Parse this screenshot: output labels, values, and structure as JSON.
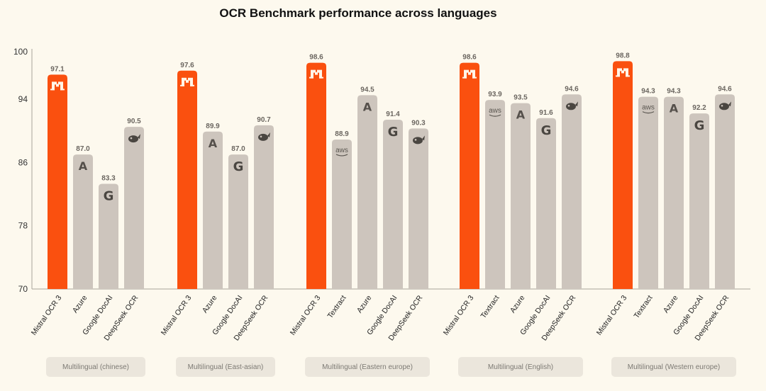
{
  "chart_data": {
    "type": "bar",
    "title": "OCR Benchmark performance across languages",
    "xlabel": "",
    "ylabel": "",
    "ylim": [
      70,
      100
    ],
    "yticks": [
      70,
      78,
      86,
      94,
      100
    ],
    "ytick_labels": [
      "70",
      "78",
      "86",
      "94",
      "100"
    ],
    "grid": false,
    "colors": {
      "highlight": "#fa500f",
      "other": "#cdc5bd",
      "background": "#fdf9ee",
      "group_box": "#ebe6dc"
    },
    "groups": [
      {
        "name": "Multilingual (chinese)",
        "bars": [
          {
            "model": "Mistral OCR 3",
            "value": 97.1,
            "label": "97.1",
            "icon": "mistral-icon",
            "highlight": true
          },
          {
            "model": "Azure",
            "value": 87.0,
            "label": "87.0",
            "icon": "azure-icon"
          },
          {
            "model": "Google DocAI",
            "value": 83.3,
            "label": "83.3",
            "icon": "google-icon"
          },
          {
            "model": "DeepSeek OCR",
            "value": 90.5,
            "label": "90.5",
            "icon": "deepseek-icon"
          }
        ]
      },
      {
        "name": "Multilingual (East-asian)",
        "bars": [
          {
            "model": "Mistral OCR 3",
            "value": 97.6,
            "label": "97.6",
            "icon": "mistral-icon",
            "highlight": true
          },
          {
            "model": "Azure",
            "value": 89.9,
            "label": "89.9",
            "icon": "azure-icon"
          },
          {
            "model": "Google DocAI",
            "value": 87.0,
            "label": "87.0",
            "icon": "google-icon"
          },
          {
            "model": "DeepSeek OCR",
            "value": 90.7,
            "label": "90.7",
            "icon": "deepseek-icon"
          }
        ]
      },
      {
        "name": "Multilingual (Eastern europe)",
        "bars": [
          {
            "model": "Mistral OCR 3",
            "value": 98.6,
            "label": "98.6",
            "icon": "mistral-icon",
            "highlight": true
          },
          {
            "model": "Textract",
            "value": 88.9,
            "label": "88.9",
            "icon": "aws-icon"
          },
          {
            "model": "Azure",
            "value": 94.5,
            "label": "94.5",
            "icon": "azure-icon"
          },
          {
            "model": "Google DocAI",
            "value": 91.4,
            "label": "91.4",
            "icon": "google-icon"
          },
          {
            "model": "DeepSeek OCR",
            "value": 90.3,
            "label": "90.3",
            "icon": "deepseek-icon"
          }
        ]
      },
      {
        "name": "Multilingual (English)",
        "bars": [
          {
            "model": "Mistral OCR 3",
            "value": 98.6,
            "label": "98.6",
            "icon": "mistral-icon",
            "highlight": true
          },
          {
            "model": "Textract",
            "value": 93.9,
            "label": "93.9",
            "icon": "aws-icon"
          },
          {
            "model": "Azure",
            "value": 93.5,
            "label": "93.5",
            "icon": "azure-icon"
          },
          {
            "model": "Google DocAI",
            "value": 91.6,
            "label": "91.6",
            "icon": "google-icon"
          },
          {
            "model": "DeepSeek OCR",
            "value": 94.6,
            "label": "94.6",
            "icon": "deepseek-icon"
          }
        ]
      },
      {
        "name": "Multilingual (Western europe)",
        "bars": [
          {
            "model": "Mistral OCR 3",
            "value": 98.8,
            "label": "98.8",
            "icon": "mistral-icon",
            "highlight": true
          },
          {
            "model": "Textract",
            "value": 94.3,
            "label": "94.3",
            "icon": "aws-icon"
          },
          {
            "model": "Azure",
            "value": 94.3,
            "label": "94.3",
            "icon": "azure-icon"
          },
          {
            "model": "Google DocAI",
            "value": 92.2,
            "label": "92.2",
            "icon": "google-icon"
          },
          {
            "model": "DeepSeek OCR",
            "value": 94.6,
            "label": "94.6",
            "icon": "deepseek-icon"
          }
        ]
      }
    ]
  }
}
